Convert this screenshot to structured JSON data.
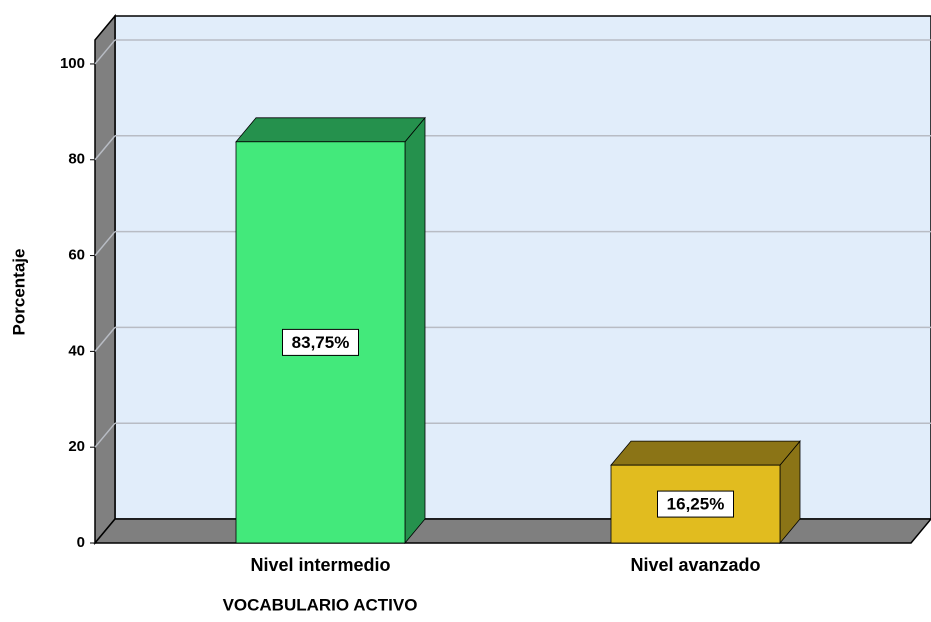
{
  "chart_data": {
    "type": "bar3d",
    "x_label": "VOCABULARIO ACTIVO",
    "y_label": "Porcentaje",
    "categories": [
      "Nivel intermedio",
      "Nivel avanzado"
    ],
    "values": [
      83.75,
      16.25
    ],
    "value_labels": [
      "83,75%",
      "16,25%"
    ],
    "colors": [
      "#43e97b",
      "#e1bc1f"
    ],
    "side_colors": [
      "#25914d",
      "#8b7416"
    ],
    "ylim": [
      0,
      105
    ],
    "yticks": [
      0,
      20,
      40,
      60,
      80,
      100
    ],
    "grid": true
  }
}
